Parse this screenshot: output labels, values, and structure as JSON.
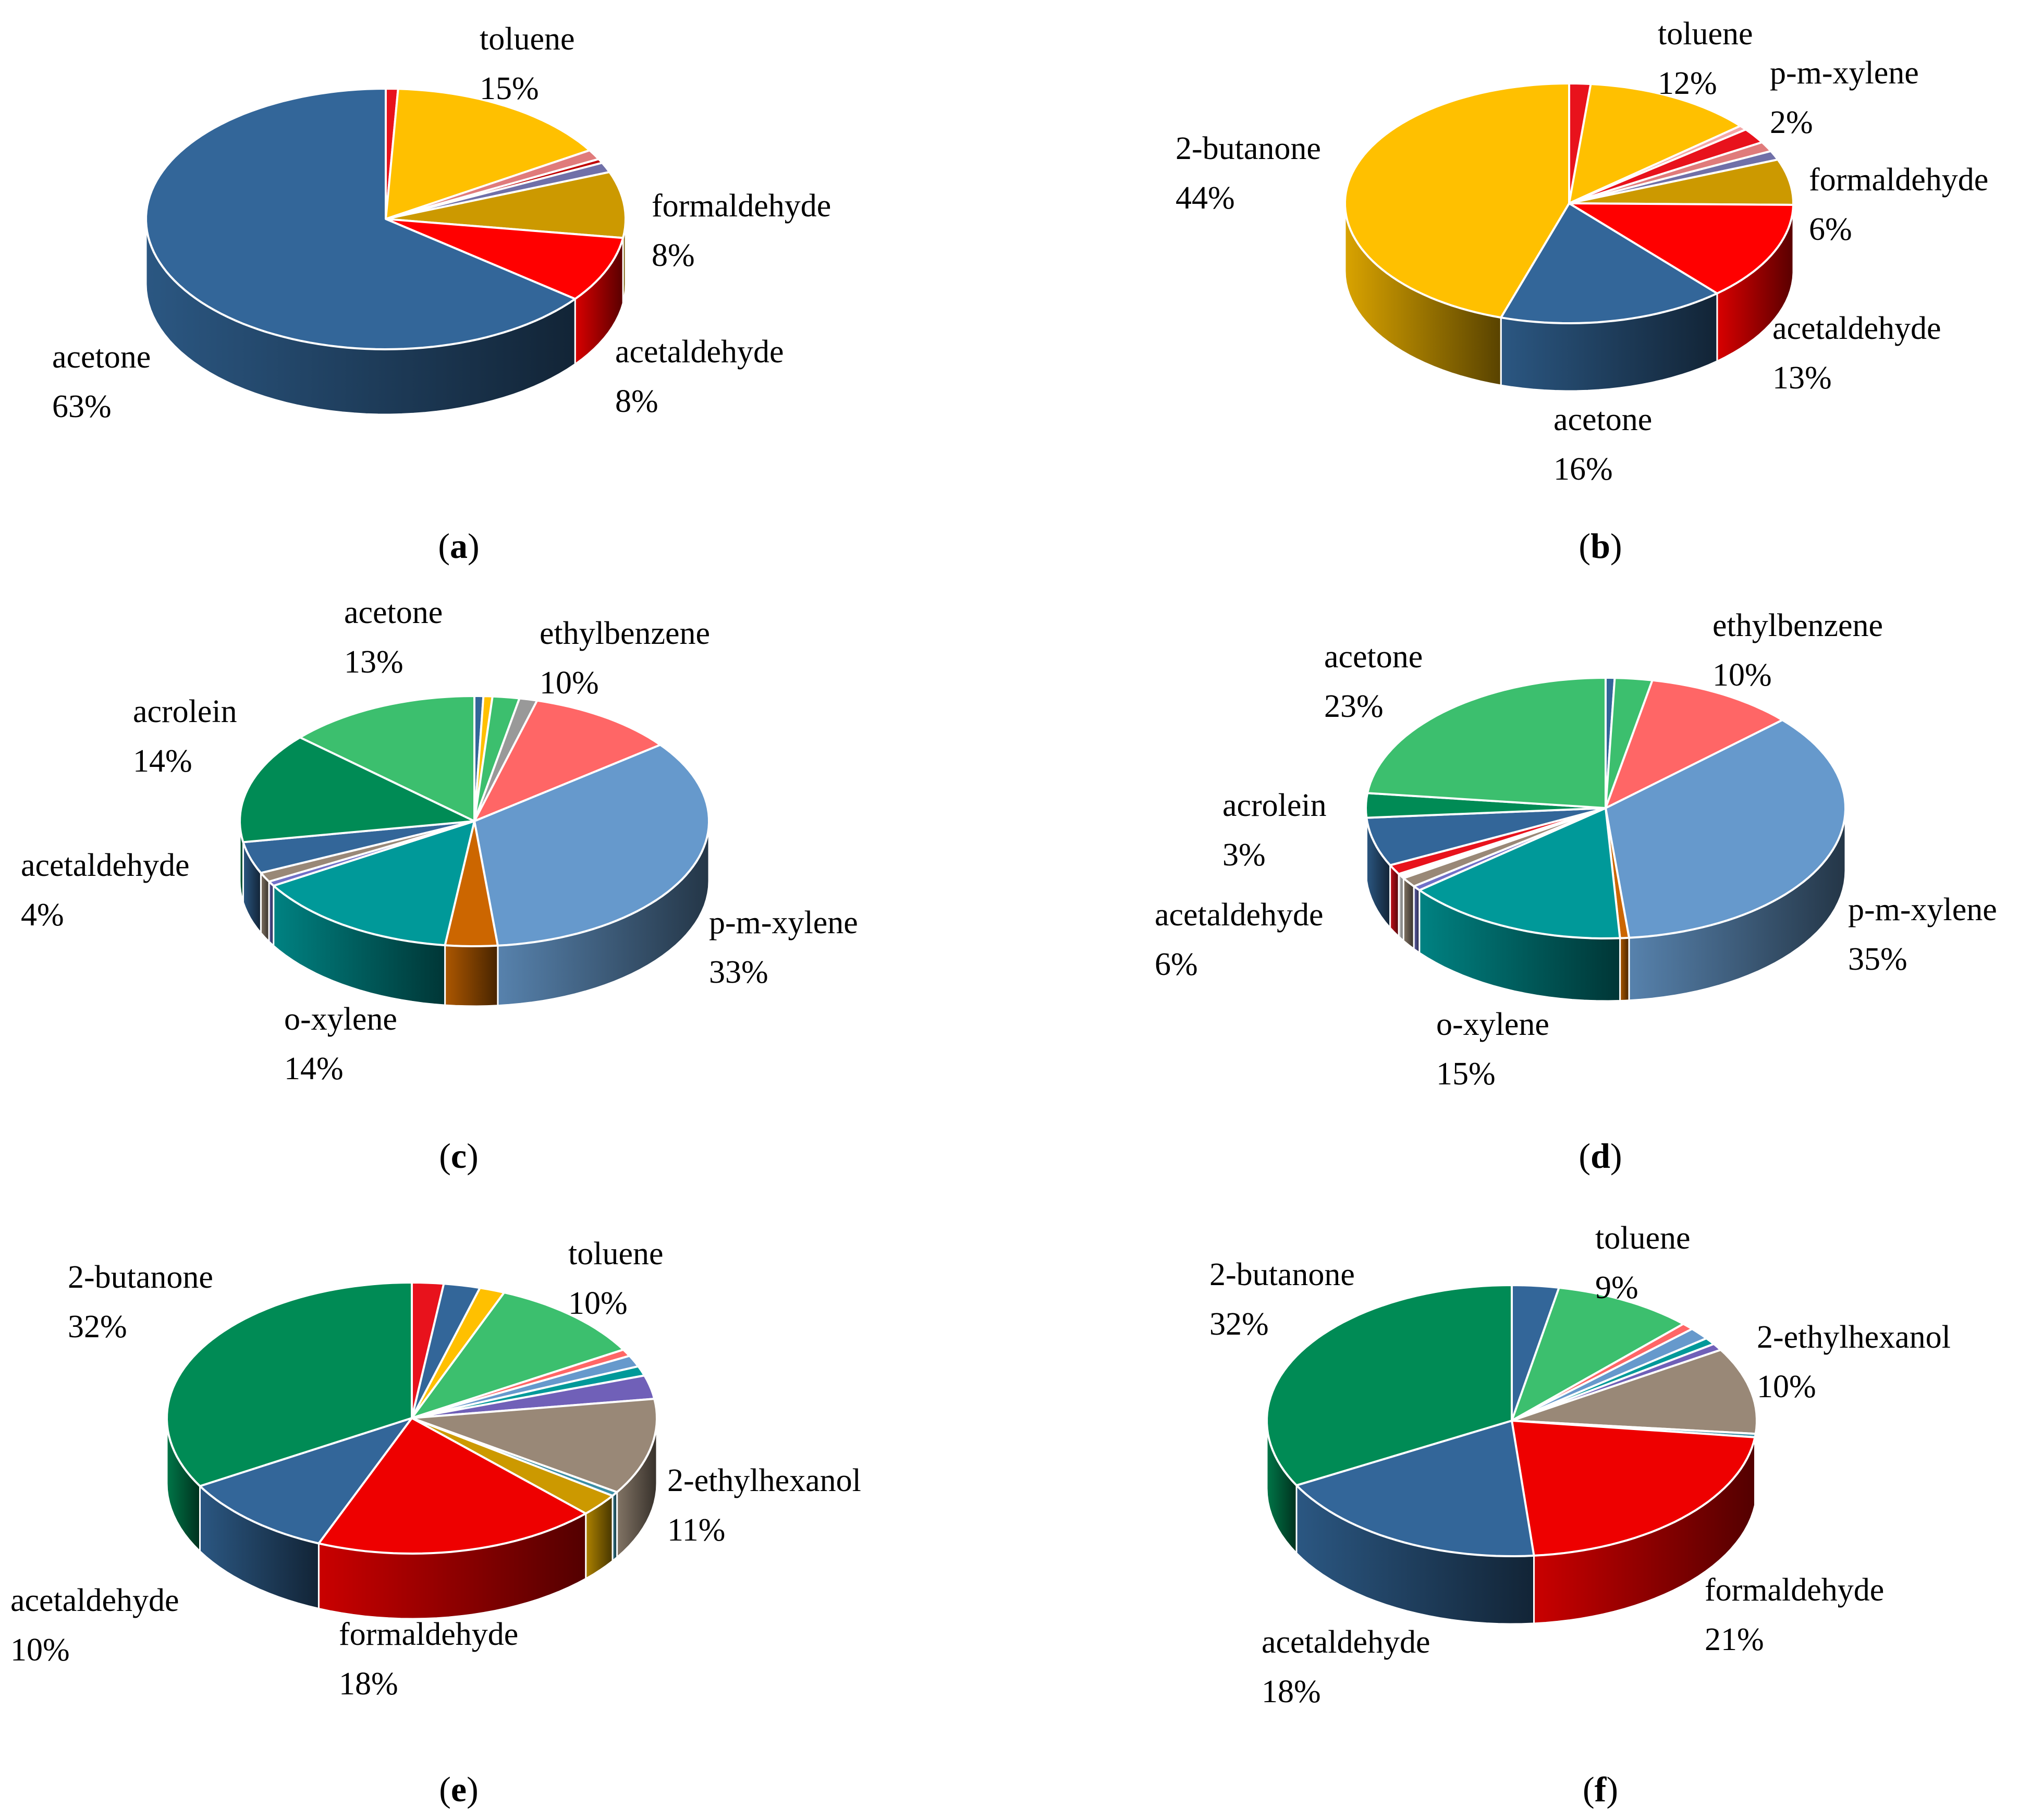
{
  "chart_data": [
    {
      "type": "pie",
      "panel": "a",
      "slices": [
        {
          "label": "",
          "value": 0.8,
          "color": "#E8121C"
        },
        {
          "label": "toluene",
          "value": 15,
          "color": "#FFC000"
        },
        {
          "label": "",
          "value": 1.2,
          "color": "#E07B7B"
        },
        {
          "label": "",
          "value": 0.5,
          "color": "#C00000"
        },
        {
          "label": "",
          "value": 1.2,
          "color": "#7070A8"
        },
        {
          "label": "formaldehyde",
          "value": 8,
          "color": "#CC9900"
        },
        {
          "label": "acetaldehyde",
          "value": 8,
          "color": "#FF0000"
        },
        {
          "label": "acetone",
          "value": 63,
          "color": "#336699"
        }
      ],
      "labels": [
        {
          "name": "toluene",
          "pct": "15%"
        },
        {
          "name": "formaldehyde",
          "pct": "8%"
        },
        {
          "name": "acetaldehyde",
          "pct": "8%"
        },
        {
          "name": "acetone",
          "pct": "63%"
        }
      ]
    },
    {
      "type": "pie",
      "panel": "b",
      "slices": [
        {
          "label": "",
          "value": 1.5,
          "color": "#E8121C"
        },
        {
          "label": "toluene",
          "value": 12,
          "color": "#FFC000"
        },
        {
          "label": "",
          "value": 0.6,
          "color": "#F4A6A6"
        },
        {
          "label": "p-m-xylene",
          "value": 2,
          "color": "#E8121C"
        },
        {
          "label": "",
          "value": 1.3,
          "color": "#E07B7B"
        },
        {
          "label": "",
          "value": 1.2,
          "color": "#7070A8"
        },
        {
          "label": "formaldehyde",
          "value": 6,
          "color": "#CC9900"
        },
        {
          "label": "acetaldehyde",
          "value": 13,
          "color": "#FF0000"
        },
        {
          "label": "acetone",
          "value": 16,
          "color": "#336699"
        },
        {
          "label": "2-butanone",
          "value": 44,
          "color": "#FFC000"
        }
      ],
      "labels": [
        {
          "name": "toluene",
          "pct": "12%"
        },
        {
          "name": "p-m-xylene",
          "pct": "2%"
        },
        {
          "name": "formaldehyde",
          "pct": "6%"
        },
        {
          "name": "acetaldehyde",
          "pct": "13%"
        },
        {
          "name": "acetone",
          "pct": "16%"
        },
        {
          "name": "2-butanone",
          "pct": "44%"
        }
      ]
    },
    {
      "type": "pie",
      "panel": "c",
      "slices": [
        {
          "label": "",
          "value": 0.6,
          "color": "#336699"
        },
        {
          "label": "",
          "value": 0.6,
          "color": "#FFC000"
        },
        {
          "label": "",
          "value": 1.8,
          "color": "#3CBF6E"
        },
        {
          "label": "",
          "value": 1.2,
          "color": "#999999"
        },
        {
          "label": "ethylbenzene",
          "value": 10,
          "color": "#FF6666"
        },
        {
          "label": "p-m-xylene",
          "value": 33,
          "color": "#6699CC"
        },
        {
          "label": "",
          "value": 3.5,
          "color": "#CC6600"
        },
        {
          "label": "o-xylene",
          "value": 14,
          "color": "#009999"
        },
        {
          "label": "",
          "value": 0.6,
          "color": "#7070C8"
        },
        {
          "label": "",
          "value": 1.2,
          "color": "#998877"
        },
        {
          "label": "acetaldehyde",
          "value": 4,
          "color": "#336699"
        },
        {
          "label": "acrolein",
          "value": 14,
          "color": "#008B55"
        },
        {
          "label": "acetone",
          "value": 13,
          "color": "#3CBF6E"
        }
      ],
      "labels": [
        {
          "name": "acetone",
          "pct": "13%"
        },
        {
          "name": "ethylbenzene",
          "pct": "10%"
        },
        {
          "name": "acrolein",
          "pct": "14%"
        },
        {
          "name": "acetaldehyde",
          "pct": "4%"
        },
        {
          "name": "p-m-xylene",
          "pct": "33%"
        },
        {
          "name": "o-xylene",
          "pct": "14%"
        }
      ]
    },
    {
      "type": "pie",
      "panel": "d",
      "slices": [
        {
          "label": "",
          "value": 0.6,
          "color": "#336699"
        },
        {
          "label": "",
          "value": 2.5,
          "color": "#3CBF6E"
        },
        {
          "label": "ethylbenzene",
          "value": 10,
          "color": "#FF6666"
        },
        {
          "label": "p-m-xylene",
          "value": 35,
          "color": "#6699CC"
        },
        {
          "label": "",
          "value": 0.6,
          "color": "#CC6600"
        },
        {
          "label": "o-xylene",
          "value": 15,
          "color": "#009999"
        },
        {
          "label": "",
          "value": 0.6,
          "color": "#7070C8"
        },
        {
          "label": "",
          "value": 1.2,
          "color": "#998877"
        },
        {
          "label": "",
          "value": 0.6,
          "color": "#FFFFFF"
        },
        {
          "label": "",
          "value": 1.2,
          "color": "#E8121C"
        },
        {
          "label": "acetaldehyde",
          "value": 6,
          "color": "#336699"
        },
        {
          "label": "acrolein",
          "value": 3,
          "color": "#008B55"
        },
        {
          "label": "acetone",
          "value": 23,
          "color": "#3CBF6E"
        }
      ],
      "labels": [
        {
          "name": "acetone",
          "pct": "23%"
        },
        {
          "name": "ethylbenzene",
          "pct": "10%"
        },
        {
          "name": "acrolein",
          "pct": "3%"
        },
        {
          "name": "acetaldehyde",
          "pct": "6%"
        },
        {
          "name": "p-m-xylene",
          "pct": "35%"
        },
        {
          "name": "o-xylene",
          "pct": "15%"
        }
      ]
    },
    {
      "type": "pie",
      "panel": "e",
      "slices": [
        {
          "label": "",
          "value": 2,
          "color": "#E8121C"
        },
        {
          "label": "",
          "value": 2.3,
          "color": "#336699"
        },
        {
          "label": "",
          "value": 1.6,
          "color": "#FFC000"
        },
        {
          "label": "toluene",
          "value": 10,
          "color": "#3CBF6E"
        },
        {
          "label": "",
          "value": 0.8,
          "color": "#FF6666"
        },
        {
          "label": "",
          "value": 1.3,
          "color": "#6699CC"
        },
        {
          "label": "",
          "value": 1.1,
          "color": "#009999"
        },
        {
          "label": "",
          "value": 2.7,
          "color": "#7060B8"
        },
        {
          "label": "2-ethylhexanol",
          "value": 11,
          "color": "#998877"
        },
        {
          "label": "",
          "value": 0.5,
          "color": "#3B8EA5"
        },
        {
          "label": "",
          "value": 2.6,
          "color": "#CC9900"
        },
        {
          "label": "formaldehyde",
          "value": 18,
          "color": "#EE0000"
        },
        {
          "label": "acetaldehyde",
          "value": 10,
          "color": "#336699"
        },
        {
          "label": "2-butanone",
          "value": 32,
          "color": "#008B55"
        }
      ],
      "labels": [
        {
          "name": "toluene",
          "pct": "10%"
        },
        {
          "name": "2-butanone",
          "pct": "32%"
        },
        {
          "name": "2-ethylhexanol",
          "pct": "11%"
        },
        {
          "name": "acetaldehyde",
          "pct": "10%"
        },
        {
          "name": "formaldehyde",
          "pct": "18%"
        }
      ]
    },
    {
      "type": "pie",
      "panel": "f",
      "slices": [
        {
          "label": "",
          "value": 3,
          "color": "#336699"
        },
        {
          "label": "toluene",
          "value": 9,
          "color": "#3CBF6E"
        },
        {
          "label": "",
          "value": 0.8,
          "color": "#FF6666"
        },
        {
          "label": "",
          "value": 1.4,
          "color": "#6699CC"
        },
        {
          "label": "",
          "value": 0.8,
          "color": "#009999"
        },
        {
          "label": "",
          "value": 0.8,
          "color": "#7060B8"
        },
        {
          "label": "2-ethylhexanol",
          "value": 10,
          "color": "#998877"
        },
        {
          "label": "",
          "value": 0.4,
          "color": "#3B8EA5"
        },
        {
          "label": "formaldehyde",
          "value": 21,
          "color": "#EE0000"
        },
        {
          "label": "acetaldehyde",
          "value": 18,
          "color": "#336699"
        },
        {
          "label": "2-butanone",
          "value": 32,
          "color": "#008B55"
        }
      ],
      "labels": [
        {
          "name": "toluene",
          "pct": "9%"
        },
        {
          "name": "2-butanone",
          "pct": "32%"
        },
        {
          "name": "2-ethylhexanol",
          "pct": "10%"
        },
        {
          "name": "formaldehyde",
          "pct": "21%"
        },
        {
          "name": "acetaldehyde",
          "pct": "18%"
        }
      ]
    }
  ],
  "panel_captions": [
    {
      "open": "(",
      "letter": "a",
      "close": ")"
    },
    {
      "open": "(",
      "letter": "b",
      "close": ")"
    },
    {
      "open": "(",
      "letter": "c",
      "close": ")"
    },
    {
      "open": "(",
      "letter": "d",
      "close": ")"
    },
    {
      "open": "(",
      "letter": "e",
      "close": ")"
    },
    {
      "open": "(",
      "letter": "f",
      "close": ")"
    }
  ]
}
